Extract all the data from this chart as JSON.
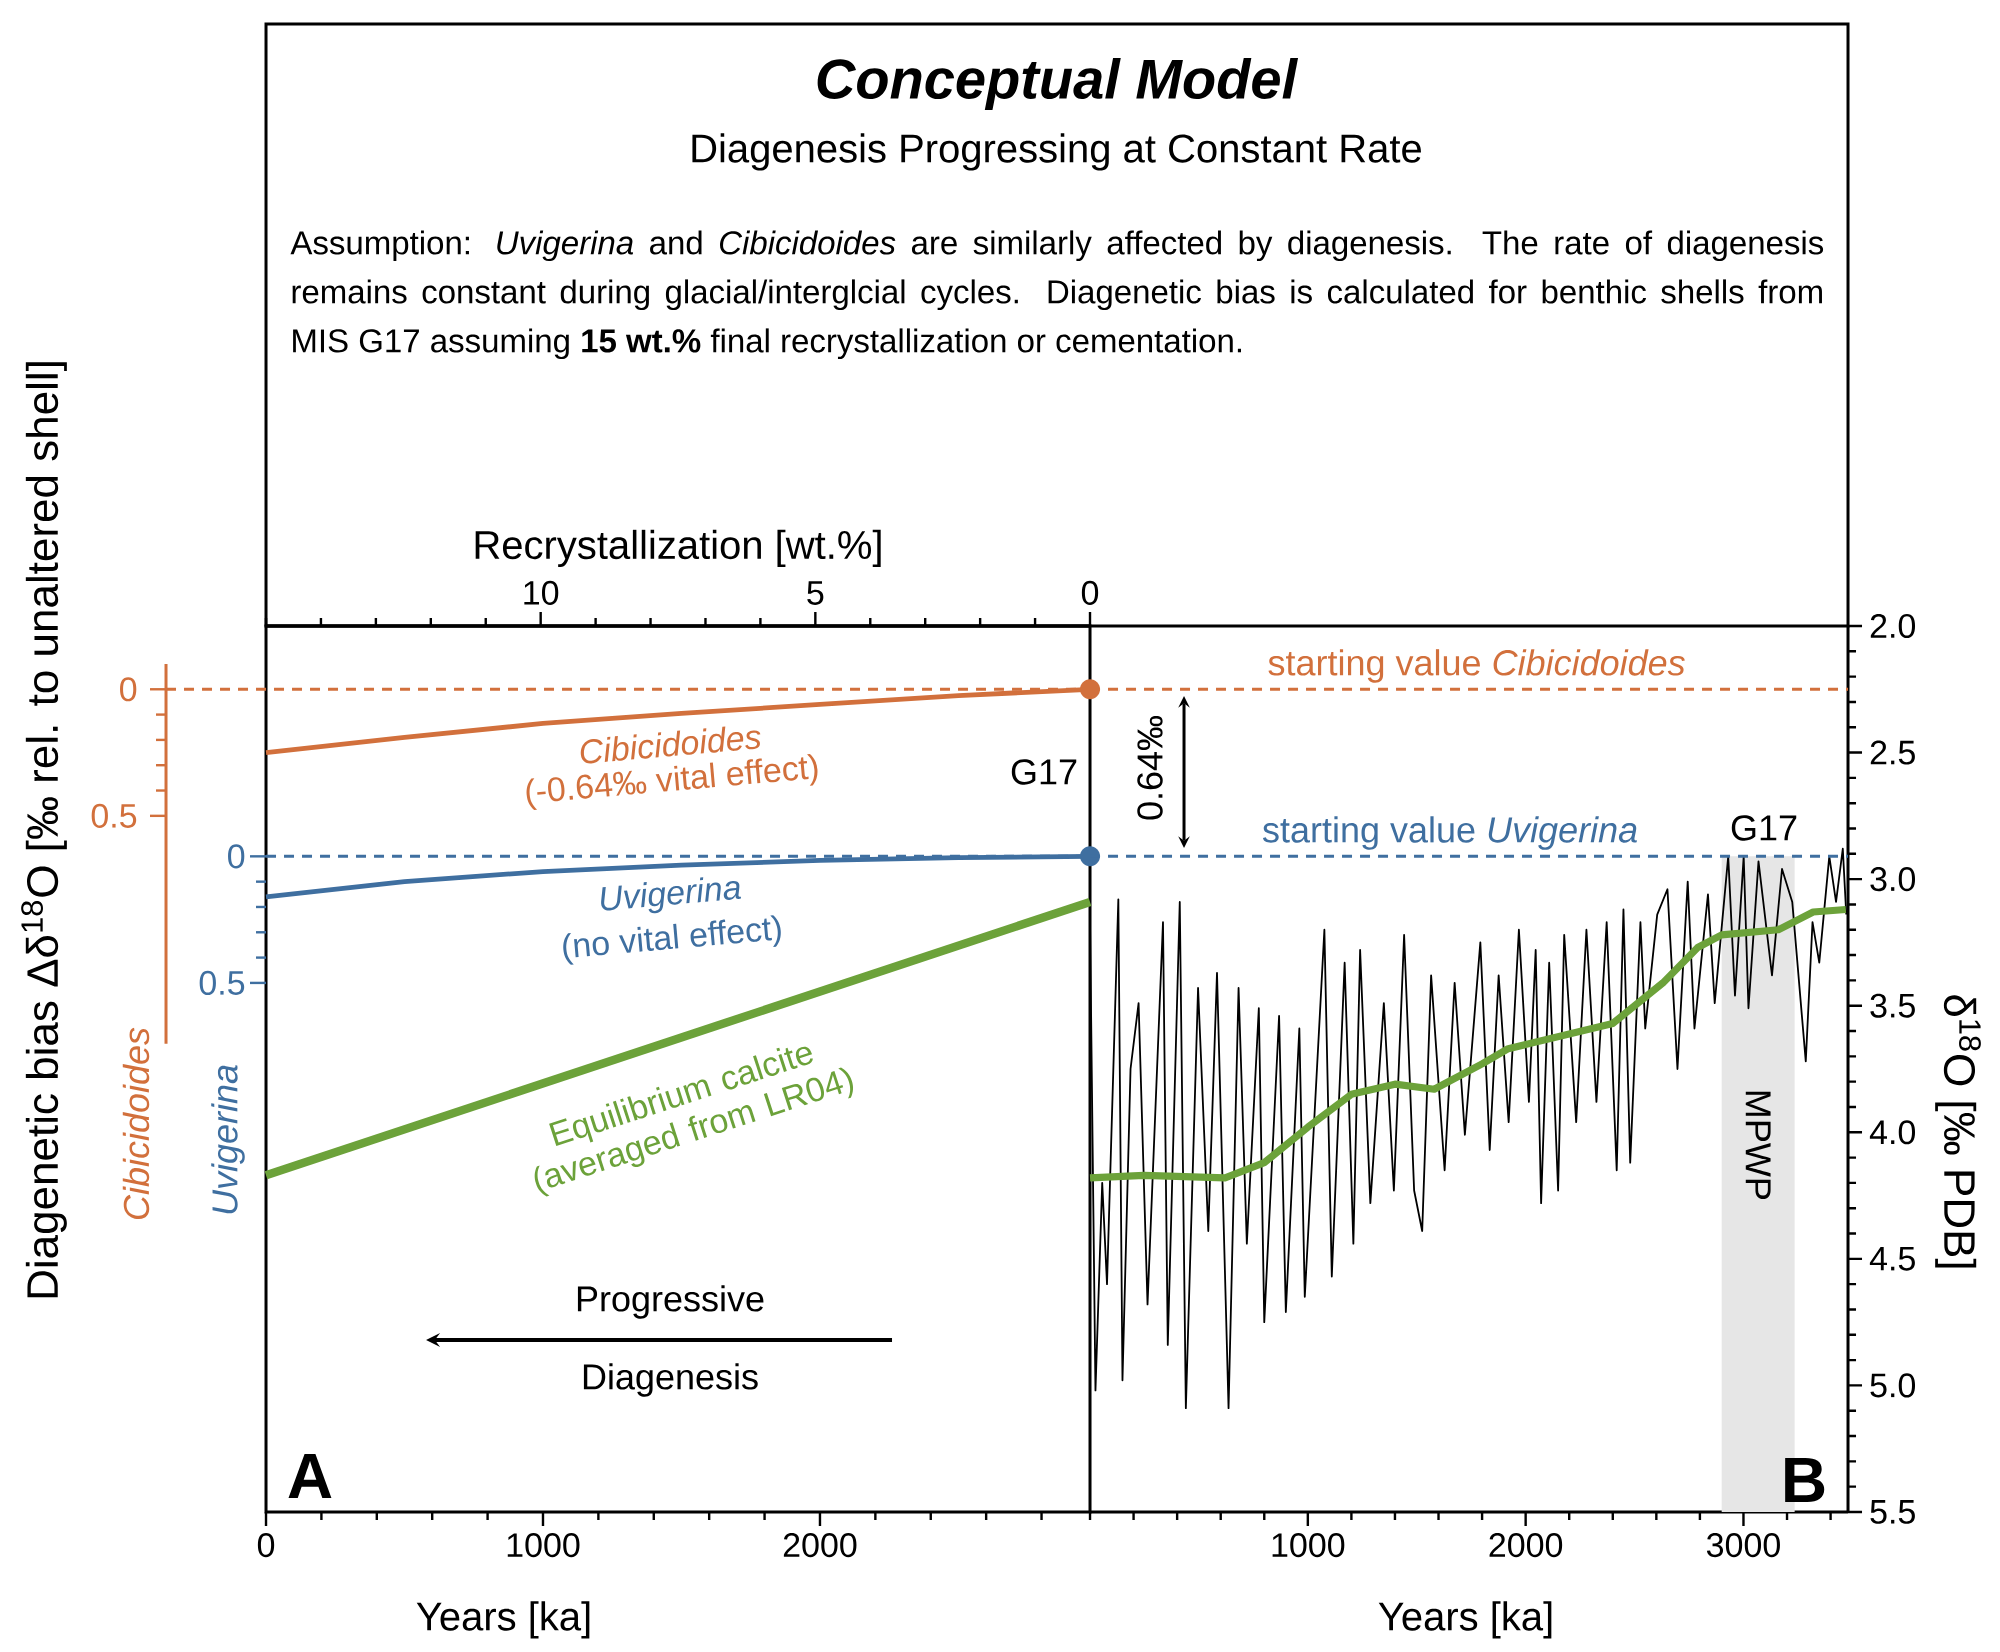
{
  "chart_data": [
    {
      "type": "line",
      "title": "Conceptual Model",
      "subtitle": "Diagenesis Progressing at Constant Rate",
      "xlabel": "Years [ka]",
      "ylabel": "Cibicidoides",
      "y2label": "Uvigerina",
      "x2label": "Recrystallization [wt.%]",
      "xlim": [
        0,
        2975
      ],
      "xticks": [
        0,
        1000,
        2000
      ],
      "x2lim": [
        15,
        0
      ],
      "x2ticks": [
        10,
        5,
        0
      ],
      "ylim": [
        3.25,
        -0.25
      ],
      "yticks": [
        0,
        0.5
      ],
      "y2lim": [
        2.59,
        -0.91
      ],
      "y2ticks": [
        0,
        0.5
      ],
      "marker": "none",
      "series": [
        {
          "name": "Cibicidoides",
          "color": "#d2703c",
          "x": [
            0,
            500,
            1000,
            1500,
            2000,
            2500,
            2975
          ],
          "values": [
            0.25,
            0.19,
            0.135,
            0.095,
            0.06,
            0.025,
            0
          ]
        },
        {
          "type": "scatter",
          "marker": "circle",
          "color": "#d2703c",
          "x": [
            2975
          ],
          "values": [
            0
          ]
        },
        {
          "name": "Uvigerina",
          "color": "#3f6fa0",
          "axis": "y2",
          "x": [
            0,
            500,
            1000,
            1500,
            2000,
            2500,
            2975
          ],
          "values": [
            0.16,
            0.1,
            0.06,
            0.035,
            0.016,
            0.005,
            0
          ]
        },
        {
          "type": "scatter",
          "marker": "circle",
          "axis": "y2",
          "color": "#3f6fa0",
          "x": [
            2975
          ],
          "values": [
            0
          ]
        },
        {
          "name": "Equilibrium calcite (averaged from LR04)",
          "color": "#6ca23a",
          "axis": "y2",
          "x": [
            0,
            2975
          ],
          "values": [
            1.26,
            0.18
          ]
        }
      ],
      "ref_lines": [
        {
          "axis": "y",
          "value": 0,
          "color": "#d2703c",
          "line_style": "dashed"
        },
        {
          "axis": "y2",
          "value": 0,
          "color": "#3f6fa0",
          "line_style": "dashed"
        }
      ],
      "annotations": [
        "Diagenetic bias Δδ$^{18}$O [‰ rel. to unaltered shell]",
        "Assumption: *Uvigerina* and *Cibicidoides* are similarly affected by diagenesis. The rate of diagenesis remains constant during glacial/interglcial cycles. Diagenetic bias is calculated for benthic shells from MIS G17 assuming **15 wt.%** final recrystallization or cementation.",
        "(-0.64‰ vital effect)",
        "(no vital effect)",
        "G17",
        "Progressive",
        "Diagenesis",
        "A"
      ]
    },
    {
      "type": "line",
      "xlabel": "Years [ka]",
      "ylabel": "δ$^{18}$O [‰ PDB]",
      "xlim": [
        0,
        3480
      ],
      "xticks": [
        1000,
        2000,
        3000
      ],
      "ylim": [
        5.5,
        2.0
      ],
      "yticks": [
        {
          "value": 2,
          "label": "2.0"
        },
        2.5,
        {
          "value": 3,
          "label": "3.0"
        },
        3.5,
        {
          "value": 4,
          "label": "4.0"
        },
        4.5,
        {
          "value": 5,
          "label": "5.0"
        },
        5.5
      ],
      "marker": "none",
      "series": [
        {
          "color": "#000000",
          "x": [
            0,
            25,
            56,
            78,
            130,
            149,
            186,
            223,
            264,
            335,
            357,
            412,
            440,
            496,
            543,
            583,
            636,
            682,
            720,
            775,
            800,
            868,
            899,
            961,
            986,
            1076,
            1110,
            1169,
            1209,
            1240,
            1287,
            1349,
            1395,
            1442,
            1488,
            1525,
            1566,
            1628,
            1674,
            1721,
            1792,
            1835,
            1876,
            1922,
            1969,
            2015,
            2046,
            2071,
            2108,
            2149,
            2177,
            2232,
            2279,
            2325,
            2372,
            2418,
            2449,
            2480,
            2527,
            2549,
            2604,
            2651,
            2697,
            2744,
            2775,
            2837,
            2868,
            2930,
            2961,
            3001,
            3023,
            3069,
            3131,
            3177,
            3224,
            3286,
            3317,
            3348,
            3394,
            3425,
            3456,
            3472
          ],
          "values": [
            3.17,
            5.02,
            4.2,
            4.6,
            3.08,
            4.98,
            3.75,
            3.49,
            4.68,
            3.17,
            4.84,
            3.09,
            5.09,
            3.43,
            4.39,
            3.37,
            5.09,
            3.43,
            4.44,
            3.51,
            4.75,
            3.54,
            4.71,
            3.59,
            4.65,
            3.2,
            4.57,
            3.33,
            4.44,
            3.28,
            4.28,
            3.49,
            4.23,
            3.22,
            4.23,
            4.39,
            3.38,
            4.15,
            3.41,
            4.01,
            3.25,
            4.07,
            3.38,
            3.96,
            3.2,
            3.88,
            3.28,
            4.28,
            3.33,
            4.23,
            3.22,
            3.96,
            3.2,
            3.88,
            3.17,
            4.15,
            3.12,
            4.12,
            3.17,
            3.59,
            3.14,
            3.04,
            3.75,
            3.01,
            3.59,
            3.06,
            3.49,
            2.91,
            3.46,
            2.91,
            3.51,
            2.93,
            3.38,
            2.96,
            3.09,
            3.72,
            3.17,
            3.33,
            2.91,
            3.09,
            2.88,
            3.14
          ]
        },
        {
          "color": "#6ca23a",
          "x": [
            0,
            248,
            620,
            800,
            1000,
            1200,
            1400,
            1580,
            1800,
            1920,
            2400,
            2630,
            2790,
            2900,
            3160,
            3320,
            3470
          ],
          "values": [
            4.18,
            4.17,
            4.18,
            4.12,
            3.98,
            3.85,
            3.81,
            3.83,
            3.73,
            3.67,
            3.57,
            3.41,
            3.27,
            3.22,
            3.2,
            3.13,
            3.12
          ]
        }
      ],
      "ref_lines": [
        {
          "axis": "y",
          "value": 2.25,
          "label": "starting value *Cibicidoides*",
          "color": "#d2703c",
          "line_style": "dashed"
        },
        {
          "axis": "y",
          "value": 2.91,
          "label": "starting value *Uvigerina*",
          "color": "#3f6fa0",
          "line_style": "dashed"
        }
      ],
      "bands": [
        {
          "axis": "x",
          "from": 2900,
          "to": 3235,
          "label": "MPWP",
          "color": "#e6e6e6"
        }
      ],
      "annotations": [
        "G17",
        "0.64‰",
        "B"
      ]
    }
  ]
}
